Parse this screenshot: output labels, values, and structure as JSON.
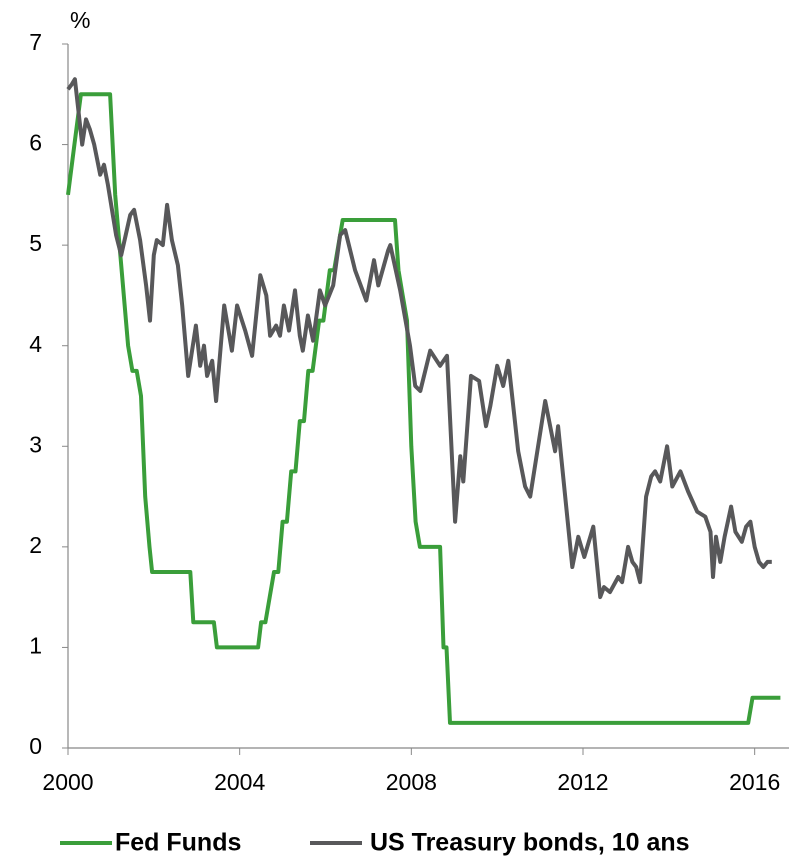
{
  "chart_data": {
    "type": "line",
    "y_label": "%",
    "xlim": [
      2000,
      2016.8
    ],
    "xticks": [
      2000,
      2004,
      2008,
      2012,
      2016
    ],
    "ylim": [
      0,
      7
    ],
    "yticks": [
      0,
      1,
      2,
      3,
      4,
      5,
      6,
      7
    ],
    "grid": false,
    "legend": "bottom",
    "series": [
      {
        "name": "Fed Funds",
        "color": "#3a9e3a",
        "x": [
          2000,
          2000.15,
          2000.3,
          2000.98,
          2001.1,
          2001.2,
          2001.3,
          2001.4,
          2001.5,
          2001.6,
          2001.7,
          2001.8,
          2001.9,
          2001.96,
          2002.85,
          2002.92,
          2003.4,
          2003.47,
          2004.43,
          2004.5,
          2004.6,
          2004.7,
          2004.8,
          2004.9,
          2005.0,
          2005.1,
          2005.2,
          2005.3,
          2005.4,
          2005.5,
          2005.6,
          2005.7,
          2005.85,
          2005.95,
          2006.1,
          2006.2,
          2006.4,
          2007.62,
          2007.7,
          2007.8,
          2007.9,
          2008.0,
          2008.1,
          2008.2,
          2008.67,
          2008.75,
          2008.82,
          2008.9,
          2015.85,
          2015.95,
          2016.6
        ],
        "values": [
          5.5,
          6.0,
          6.5,
          6.5,
          5.5,
          5.0,
          4.5,
          4.0,
          3.75,
          3.75,
          3.5,
          2.5,
          2.0,
          1.75,
          1.75,
          1.25,
          1.25,
          1.0,
          1.0,
          1.25,
          1.25,
          1.5,
          1.75,
          1.75,
          2.25,
          2.25,
          2.75,
          2.75,
          3.25,
          3.25,
          3.75,
          3.75,
          4.25,
          4.25,
          4.75,
          4.75,
          5.25,
          5.25,
          4.75,
          4.5,
          4.25,
          3.0,
          2.25,
          2.0,
          2.0,
          1.0,
          1.0,
          0.25,
          0.25,
          0.5,
          0.5
        ]
      },
      {
        "name": "US Treasury bonds, 10 ans",
        "color": "#58585a",
        "x": [
          2000,
          2000.09,
          2000.16,
          2000.33,
          2000.42,
          2000.51,
          2000.61,
          2000.75,
          2000.84,
          2000.93,
          2001.12,
          2001.24,
          2001.45,
          2001.54,
          2001.68,
          2001.82,
          2001.91,
          2002.0,
          2002.07,
          2002.21,
          2002.31,
          2002.42,
          2002.56,
          2002.66,
          2002.8,
          2002.98,
          2003.08,
          2003.17,
          2003.24,
          2003.36,
          2003.45,
          2003.64,
          2003.82,
          2003.94,
          2004.13,
          2004.29,
          2004.48,
          2004.62,
          2004.71,
          2004.85,
          2004.94,
          2005.03,
          2005.15,
          2005.29,
          2005.4,
          2005.47,
          2005.59,
          2005.71,
          2005.87,
          2005.99,
          2006.18,
          2006.34,
          2006.46,
          2006.69,
          2006.95,
          2007.13,
          2007.23,
          2007.46,
          2007.51,
          2007.74,
          2007.97,
          2008.09,
          2008.21,
          2008.44,
          2008.67,
          2008.83,
          2009.02,
          2009.14,
          2009.21,
          2009.39,
          2009.58,
          2009.74,
          2009.84,
          2010.0,
          2010.14,
          2010.26,
          2010.49,
          2010.65,
          2010.77,
          2011.12,
          2011.35,
          2011.42,
          2011.75,
          2011.89,
          2012.03,
          2012.24,
          2012.4,
          2012.49,
          2012.63,
          2012.82,
          2012.91,
          2013.05,
          2013.15,
          2013.24,
          2013.33,
          2013.47,
          2013.59,
          2013.68,
          2013.8,
          2013.96,
          2014.08,
          2014.27,
          2014.45,
          2014.66,
          2014.85,
          2014.97,
          2015.03,
          2015.1,
          2015.2,
          2015.3,
          2015.45,
          2015.55,
          2015.7,
          2015.8,
          2015.9,
          2016.0,
          2016.1,
          2016.2,
          2016.3,
          2016.4
        ],
        "values": [
          6.55,
          6.6,
          6.65,
          6.0,
          6.25,
          6.15,
          6.0,
          5.7,
          5.8,
          5.6,
          5.1,
          4.9,
          5.3,
          5.35,
          5.05,
          4.6,
          4.25,
          4.9,
          5.05,
          5.0,
          5.4,
          5.05,
          4.8,
          4.4,
          3.7,
          4.2,
          3.8,
          4.0,
          3.7,
          3.85,
          3.45,
          4.4,
          3.95,
          4.4,
          4.15,
          3.9,
          4.7,
          4.5,
          4.1,
          4.2,
          4.1,
          4.4,
          4.15,
          4.55,
          4.1,
          3.95,
          4.3,
          4.05,
          4.55,
          4.4,
          4.6,
          5.1,
          5.15,
          4.75,
          4.45,
          4.85,
          4.6,
          4.95,
          5.0,
          4.55,
          4.0,
          3.6,
          3.55,
          3.95,
          3.8,
          3.9,
          2.25,
          2.9,
          2.65,
          3.7,
          3.65,
          3.2,
          3.4,
          3.8,
          3.6,
          3.85,
          2.95,
          2.6,
          2.5,
          3.45,
          2.95,
          3.2,
          1.8,
          2.1,
          1.9,
          2.2,
          1.5,
          1.6,
          1.55,
          1.7,
          1.65,
          2.0,
          1.85,
          1.8,
          1.65,
          2.5,
          2.7,
          2.75,
          2.65,
          3.0,
          2.6,
          2.75,
          2.55,
          2.35,
          2.3,
          2.15,
          1.7,
          2.1,
          1.85,
          2.1,
          2.4,
          2.15,
          2.05,
          2.2,
          2.25,
          2.0,
          1.85,
          1.8,
          1.85,
          1.85
        ]
      }
    ]
  }
}
